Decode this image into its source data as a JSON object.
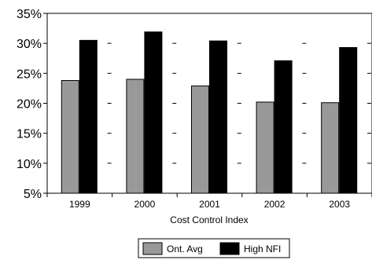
{
  "chart_data": {
    "type": "bar",
    "categories": [
      "1999",
      "2000",
      "2001",
      "2002",
      "2003"
    ],
    "series": [
      {
        "name": "Ont. Avg",
        "color": "#999999",
        "values": [
          23.8,
          24.0,
          22.9,
          20.2,
          20.1
        ]
      },
      {
        "name": "High NFI",
        "color": "#000000",
        "values": [
          30.5,
          31.9,
          30.4,
          27.1,
          29.3
        ]
      }
    ],
    "xlabel": "Cost Control Index",
    "ylim": [
      5,
      35
    ],
    "yticks": [
      "5%",
      "10%",
      "15%",
      "20%",
      "25%",
      "30%",
      "35%"
    ],
    "ytick_values": [
      5,
      10,
      15,
      20,
      25,
      30,
      35
    ],
    "legend_position": "bottom-center",
    "gridlines": "dashed-horizontal"
  }
}
